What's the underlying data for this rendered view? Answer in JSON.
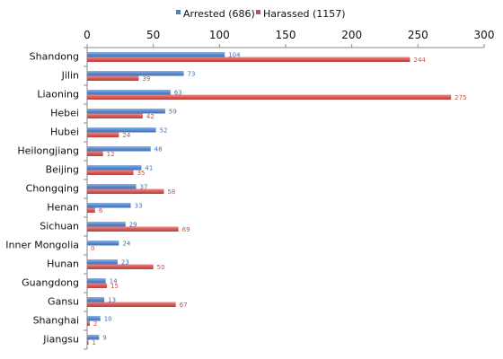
{
  "chart_data": {
    "type": "bar",
    "orientation": "horizontal",
    "categories": [
      "Shandong",
      "Jilin",
      "Liaoning",
      "Hebei",
      "Hubei",
      "Heilongjiang",
      "Beijing",
      "Chongqing",
      "Henan",
      "Sichuan",
      "Inner Mongolia",
      "Hunan",
      "Guangdong",
      "Gansu",
      "Shanghai",
      "Jiangsu"
    ],
    "series": [
      {
        "name": "Arrested (686)",
        "color": "#4f81bd",
        "values": [
          104,
          73,
          63,
          59,
          52,
          48,
          41,
          37,
          33,
          29,
          24,
          23,
          14,
          13,
          10,
          9
        ]
      },
      {
        "name": "Harassed (1157)",
        "color": "#c0504d",
        "values": [
          244,
          39,
          275,
          42,
          24,
          12,
          35,
          58,
          6,
          69,
          0,
          50,
          15,
          67,
          2,
          1
        ]
      }
    ],
    "xlim": [
      0,
      300
    ],
    "xticks": [
      0,
      50,
      100,
      150,
      200,
      250,
      300
    ],
    "x_axis_position": "top",
    "grid": false,
    "legend_position": "top",
    "data_labels": true,
    "title": "",
    "xlabel": "",
    "ylabel": ""
  }
}
